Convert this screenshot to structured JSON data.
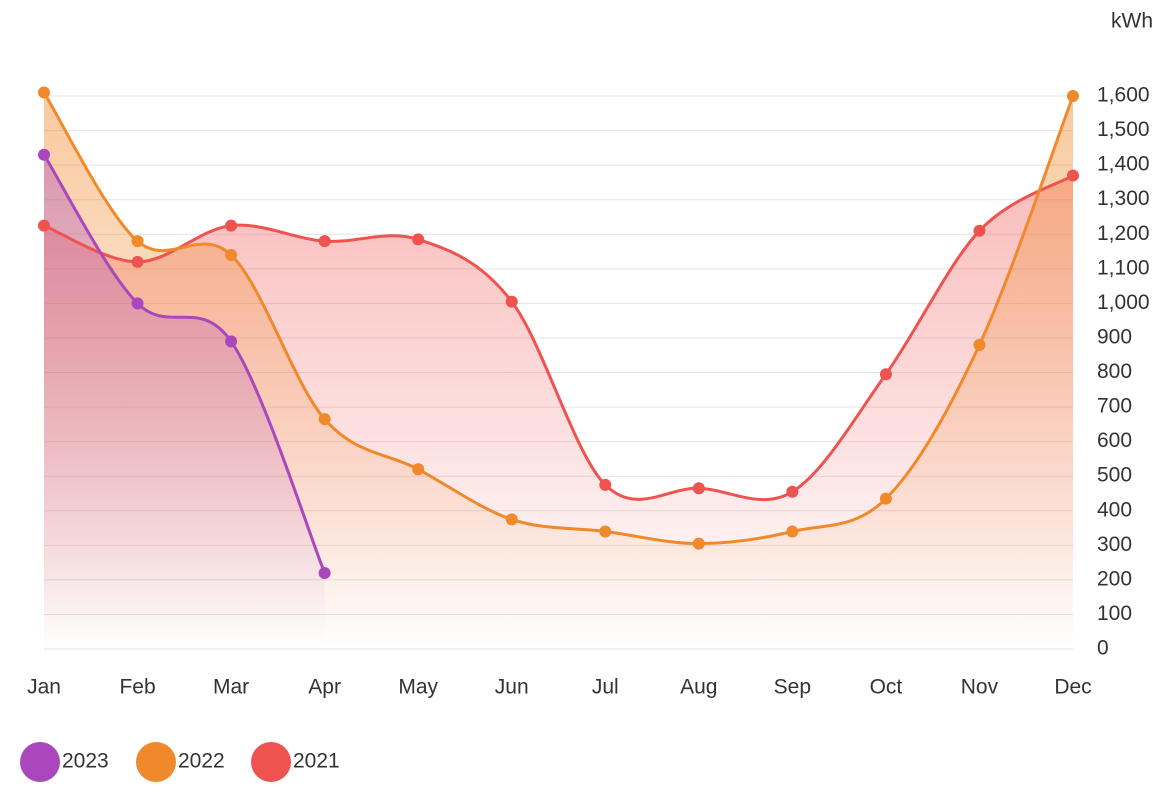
{
  "chart_data": {
    "type": "line",
    "y_unit": "kWh",
    "categories": [
      "Jan",
      "Feb",
      "Mar",
      "Apr",
      "May",
      "Jun",
      "Jul",
      "Aug",
      "Sep",
      "Oct",
      "Nov",
      "Dec"
    ],
    "series": [
      {
        "name": "2023",
        "color": "#ab47bc",
        "values": [
          1430,
          1000,
          890,
          220,
          null,
          null,
          null,
          null,
          null,
          null,
          null,
          null
        ]
      },
      {
        "name": "2022",
        "color": "#f0892b",
        "values": [
          1610,
          1180,
          1140,
          665,
          520,
          375,
          340,
          305,
          340,
          435,
          880,
          1600
        ]
      },
      {
        "name": "2021",
        "color": "#ef5350",
        "values": [
          1225,
          1120,
          1225,
          1180,
          1185,
          1005,
          475,
          465,
          455,
          795,
          1210,
          1370
        ]
      }
    ],
    "ylim": [
      0,
      1600
    ],
    "yticks": [
      0,
      100,
      200,
      300,
      400,
      500,
      600,
      700,
      800,
      900,
      {
        "value": 1000,
        "label": "1,000"
      },
      {
        "value": 1100,
        "label": "1,100"
      },
      {
        "value": 1200,
        "label": "1,200"
      },
      {
        "value": 1300,
        "label": "1,300"
      },
      {
        "value": 1400,
        "label": "1,400"
      },
      {
        "value": 1500,
        "label": "1,500"
      },
      {
        "value": 1600,
        "label": "1,600"
      }
    ],
    "grid": true,
    "legend": "bottom-left",
    "area": true
  }
}
